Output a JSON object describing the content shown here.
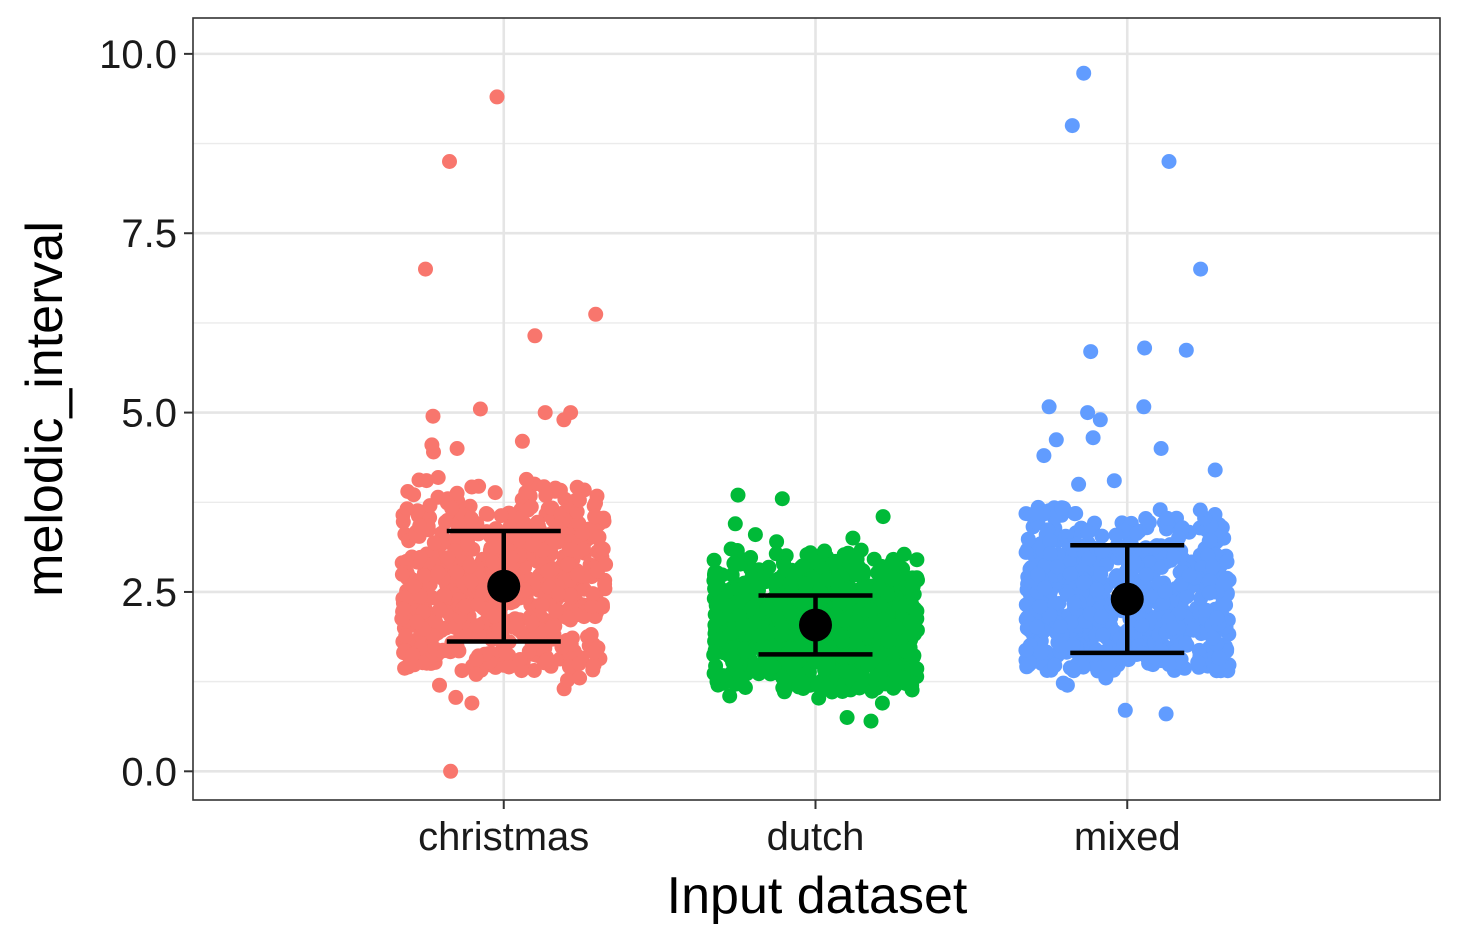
{
  "chart_data": {
    "type": "scatter",
    "title": "",
    "xlabel": "Input dataset",
    "ylabel": "melodic_interval",
    "categories": [
      "christmas",
      "dutch",
      "mixed"
    ],
    "ylim": [
      -0.4,
      10.5
    ],
    "yticks": [
      0.0,
      2.5,
      5.0,
      7.5,
      10.0
    ],
    "ytick_labels": [
      "0.0",
      "2.5",
      "5.0",
      "7.5",
      "10.0"
    ],
    "grid": true,
    "legend": "none",
    "series": [
      {
        "category": "christmas",
        "color": "#F8766D",
        "bulk": {
          "min": 1.4,
          "q1": 2.05,
          "median": 2.55,
          "q3": 3.05,
          "max": 4.1,
          "count": 700
        },
        "points": [
          0.0,
          0.95,
          1.03,
          1.15,
          1.2,
          1.27,
          1.3,
          1.35,
          4.45,
          4.5,
          4.55,
          4.6,
          4.9,
          4.95,
          5.0,
          5.0,
          5.05,
          6.07,
          6.37,
          7.0,
          8.5,
          9.4
        ],
        "mean": 2.58,
        "error_low": 1.81,
        "error_high": 3.35
      },
      {
        "category": "dutch",
        "color": "#00BA38",
        "bulk": {
          "min": 1.1,
          "q1": 1.7,
          "median": 2.05,
          "q3": 2.4,
          "max": 3.1,
          "count": 800
        },
        "points": [
          0.7,
          0.75,
          0.95,
          1.02,
          1.05,
          3.2,
          3.25,
          3.3,
          3.45,
          3.55,
          3.8,
          3.85
        ],
        "mean": 2.04,
        "error_low": 1.63,
        "error_high": 2.45
      },
      {
        "category": "mixed",
        "color": "#619CFF",
        "bulk": {
          "min": 1.4,
          "q1": 1.95,
          "median": 2.35,
          "q3": 2.85,
          "max": 3.7,
          "count": 700
        },
        "points": [
          0.8,
          0.85,
          1.2,
          1.23,
          1.3,
          4.0,
          4.05,
          4.2,
          4.4,
          4.5,
          4.62,
          4.65,
          4.9,
          5.0,
          5.08,
          5.08,
          5.85,
          5.87,
          5.9,
          7.0,
          8.5,
          9.0,
          9.73
        ],
        "mean": 2.4,
        "error_low": 1.65,
        "error_high": 3.15
      }
    ]
  }
}
